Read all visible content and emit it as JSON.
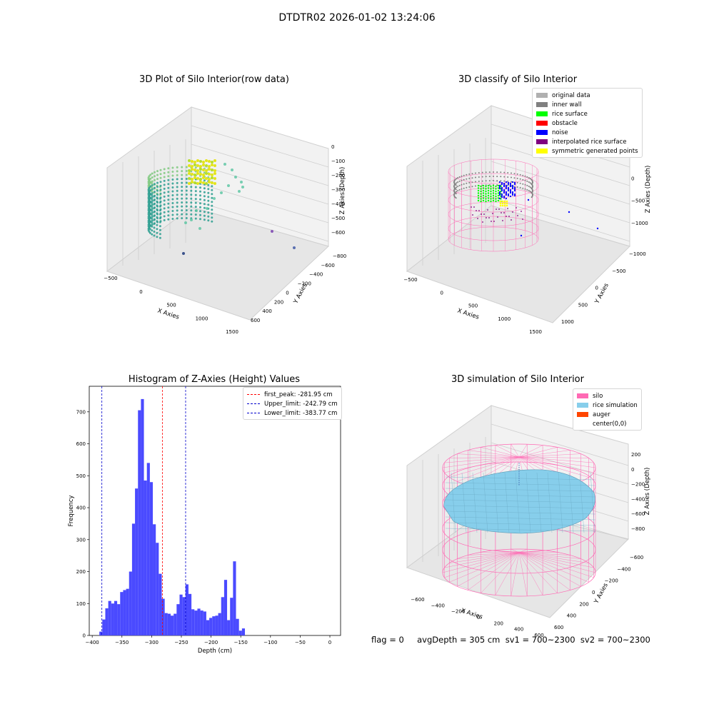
{
  "suptitle": "DTDTR02 2026-01-02 13:24:06",
  "colors": {
    "viridis_mid": "#2a9d8f",
    "viridis_high": "#e3e419",
    "silo": "#ff69b4",
    "rice_simulation": "#87ceeb",
    "auger": "#ff4500",
    "histogram_bar": "#4a4aff",
    "first_peak": "#ff0000",
    "upper_limit": "#0000cc",
    "lower_limit": "#0000cc"
  },
  "panels": {
    "raw": {
      "title": "3D Plot of Silo Interior(row data)",
      "xlabel": "X Axies",
      "ylabel": "Y Axies",
      "zlabel": "Z Axies (Depth)",
      "xticks": [
        "−500",
        "0",
        "500",
        "1000",
        "1500"
      ],
      "yticks": [
        "600",
        "400",
        "200",
        "0",
        "−200",
        "−400",
        "−600",
        "−800"
      ],
      "zticks": [
        "0",
        "−100",
        "−200",
        "−300",
        "−400",
        "−500",
        "−600"
      ]
    },
    "classify": {
      "title": "3D classify of Silo Interior",
      "xlabel": "X Axies",
      "ylabel": "Y Axies",
      "zlabel": "Z Axies (Depth)",
      "xticks": [
        "−500",
        "0",
        "500",
        "1000",
        "1500"
      ],
      "yticks": [
        "1000",
        "500",
        "0",
        "−500",
        "−1000"
      ],
      "zticks": [
        "500",
        "0",
        "−500",
        "−1000"
      ],
      "legend": [
        {
          "label": "original data",
          "color": "#b0b0b0"
        },
        {
          "label": "inner wall",
          "color": "#808080"
        },
        {
          "label": "rice surface",
          "color": "#00ff00"
        },
        {
          "label": "obstacle",
          "color": "#ff0000"
        },
        {
          "label": "noise",
          "color": "#0000ff"
        },
        {
          "label": "interpolated rice surface",
          "color": "#800080"
        },
        {
          "label": "symmetric generated points",
          "color": "#ffff00"
        }
      ]
    },
    "simulation": {
      "title": "3D simulation of Silo Interior",
      "xlabel": "X Axies",
      "ylabel": "Y Axies",
      "zlabel": "Z Axies (Depth)",
      "xticks": [
        "−600",
        "−400",
        "−200",
        "0",
        "200",
        "400",
        "600"
      ],
      "yticks": [
        "600",
        "400",
        "200",
        "0",
        "−200",
        "−400",
        "−600"
      ],
      "zticks": [
        "200",
        "0",
        "−200",
        "−400",
        "−600",
        "−800"
      ],
      "legend": [
        {
          "label": "silo",
          "color": "#ff69b4"
        },
        {
          "label": "rice simulation",
          "color": "#87ceeb"
        },
        {
          "label": "auger",
          "color": "#ff4500"
        },
        {
          "label": "center(0,0)",
          "color": "#ffffff"
        }
      ]
    }
  },
  "chart_data": {
    "type": "bar",
    "title": "Histogram of Z-Axies (Height) Values",
    "xlabel": "Depth (cm)",
    "ylabel": "Frequency",
    "xlim": [
      -405,
      18
    ],
    "ylim": [
      0,
      780
    ],
    "xticks": [
      -400,
      -350,
      -300,
      -250,
      -200,
      -150,
      -100,
      -50,
      0
    ],
    "yticks": [
      0,
      100,
      200,
      300,
      400,
      500,
      600,
      700
    ],
    "bin_start": -388,
    "bin_width": 5,
    "values": [
      12,
      50,
      85,
      108,
      100,
      108,
      98,
      136,
      142,
      146,
      200,
      350,
      460,
      705,
      740,
      485,
      540,
      480,
      348,
      290,
      193,
      115,
      70,
      68,
      62,
      68,
      98,
      128,
      120,
      160,
      130,
      82,
      78,
      84,
      78,
      75,
      48,
      55,
      60,
      62,
      70,
      120,
      174,
      48,
      118,
      232,
      52,
      15,
      22
    ],
    "lines": [
      {
        "label": "first_peak: -281.95 cm",
        "x": -281.95,
        "color": "#ff0000"
      },
      {
        "label": "Upper_limit: -242.79 cm",
        "x": -242.79,
        "color": "#0000cc"
      },
      {
        "label": "Lower_limit: -383.77 cm",
        "x": -383.77,
        "color": "#0000cc"
      }
    ],
    "legend_position": "top-right"
  },
  "footer": "flag = 0     avgDepth = 305 cm  sv1 = 700~2300  sv2 = 700~2300"
}
